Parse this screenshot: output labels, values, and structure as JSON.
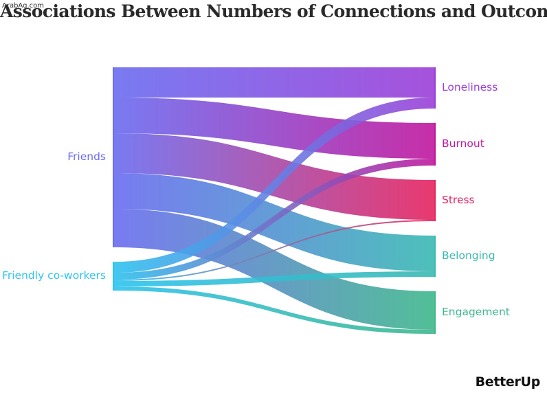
{
  "watermark": "ArabAq.com",
  "title": "Associations Between Numbers of Connections and Outcomes",
  "logo": "BetterUp",
  "sources": [
    {
      "id": "friends",
      "label": "Friends",
      "color": "#6a6cf0"
    },
    {
      "id": "coworkers",
      "label": "Friendly co-workers",
      "color": "#2ec2ee"
    }
  ],
  "targets": [
    {
      "id": "loneliness",
      "label": "Loneliness",
      "color": "#9c3fd8"
    },
    {
      "id": "burnout",
      "label": "Burnout",
      "color": "#c0189e"
    },
    {
      "id": "stress",
      "label": "Stress",
      "color": "#e6245f"
    },
    {
      "id": "belonging",
      "label": "Belonging",
      "color": "#3ab9b3"
    },
    {
      "id": "engagement",
      "label": "Engagement",
      "color": "#3fb88c"
    }
  ],
  "links": [
    {
      "source": "friends",
      "target": "loneliness",
      "value": 44
    },
    {
      "source": "friends",
      "target": "burnout",
      "value": 52
    },
    {
      "source": "friends",
      "target": "stress",
      "value": 58
    },
    {
      "source": "friends",
      "target": "belonging",
      "value": 52
    },
    {
      "source": "friends",
      "target": "engagement",
      "value": 56
    },
    {
      "source": "coworkers",
      "target": "loneliness",
      "value": 16
    },
    {
      "source": "coworkers",
      "target": "burnout",
      "value": 10
    },
    {
      "source": "coworkers",
      "target": "stress",
      "value": 2
    },
    {
      "source": "coworkers",
      "target": "belonging",
      "value": 8
    },
    {
      "source": "coworkers",
      "target": "engagement",
      "value": 6
    }
  ]
}
